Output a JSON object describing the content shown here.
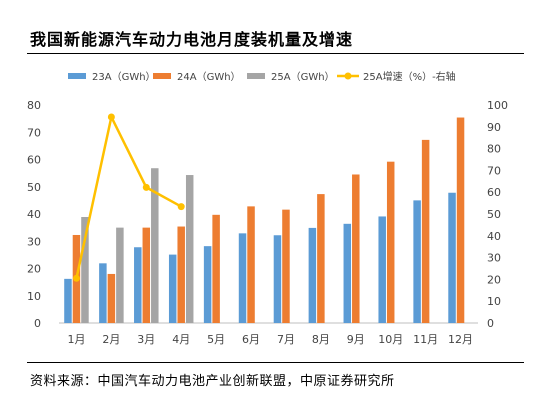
{
  "title": "我国新能源汽车动力电池月度装机量及增速",
  "source": "资料来源：中国汽车动力电池产业创新联盟，中原证券研究所",
  "chart_data": {
    "type": "bar",
    "categories": [
      "1月",
      "2月",
      "3月",
      "4月",
      "5月",
      "6月",
      "7月",
      "8月",
      "9月",
      "10月",
      "11月",
      "12月"
    ],
    "series": [
      {
        "name": "23A（GWh）",
        "kind": "bar",
        "axis": "left",
        "color": "#5B9BD5",
        "values": [
          16.2,
          21.9,
          27.8,
          25.1,
          28.2,
          32.9,
          32.2,
          34.9,
          36.4,
          39.1,
          45.0,
          47.8
        ]
      },
      {
        "name": "24A（GWh）",
        "kind": "bar",
        "axis": "left",
        "color": "#ED7D31",
        "values": [
          32.3,
          18.0,
          35.0,
          35.4,
          39.7,
          42.8,
          41.6,
          47.3,
          54.5,
          59.2,
          67.2,
          75.4
        ]
      },
      {
        "name": "25A（GWh）",
        "kind": "bar",
        "axis": "left",
        "color": "#A5A5A5",
        "values": [
          38.9,
          35.0,
          56.8,
          54.3,
          null,
          null,
          null,
          null,
          null,
          null,
          null,
          null
        ]
      },
      {
        "name": "25A增速（%）-右轴",
        "kind": "line",
        "axis": "right",
        "color": "#FFC000",
        "values": [
          20.5,
          94.5,
          62.2,
          53.4,
          null,
          null,
          null,
          null,
          null,
          null,
          null,
          null
        ]
      }
    ],
    "ylim_left": [
      0,
      80
    ],
    "yticks_left": [
      0,
      10,
      20,
      30,
      40,
      50,
      60,
      70,
      80
    ],
    "ylim_right": [
      0,
      100
    ],
    "yticks_right": [
      0,
      10,
      20,
      30,
      40,
      50,
      60,
      70,
      80,
      90,
      100
    ],
    "legend": "top",
    "grid": false
  }
}
